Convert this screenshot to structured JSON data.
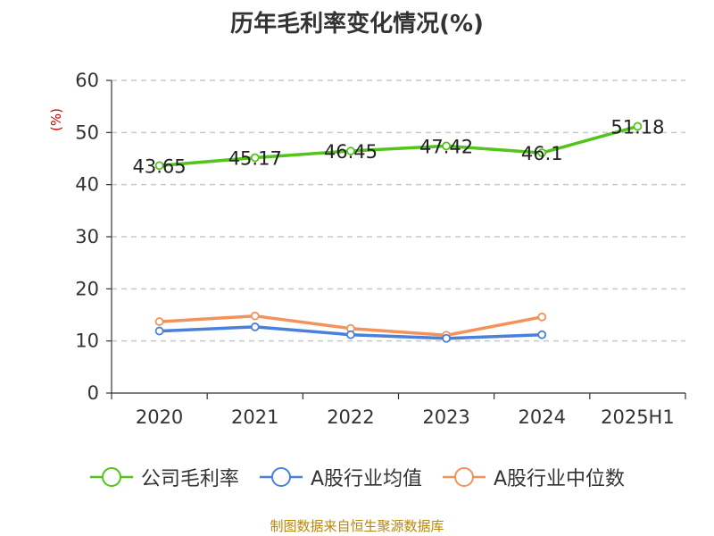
{
  "chart_data": {
    "type": "line",
    "title": "历年毛利率变化情况(%)",
    "unit": "(%)",
    "categories": [
      "2020",
      "2021",
      "2022",
      "2023",
      "2024",
      "2025H1"
    ],
    "ylim": [
      0,
      60
    ],
    "yticks": [
      0,
      10,
      20,
      30,
      40,
      50,
      60
    ],
    "grid": true,
    "legend_position": "bottom",
    "series": [
      {
        "name": "公司毛利率",
        "color": "#52c41a",
        "values": [
          43.65,
          45.17,
          46.45,
          47.42,
          46.1,
          51.18
        ],
        "labels": [
          "43.65",
          "45.17",
          "46.45",
          "47.42",
          "46.1",
          "51.18"
        ]
      },
      {
        "name": "A股行业均值",
        "color": "#4a7fdc",
        "values": [
          11.9,
          12.7,
          11.2,
          10.5,
          11.2,
          null
        ]
      },
      {
        "name": "A股行业中位数",
        "color": "#f5925a",
        "values": [
          13.7,
          14.8,
          12.4,
          11.1,
          14.6,
          null
        ]
      }
    ]
  },
  "source": "制图数据来自恒生聚源数据库"
}
